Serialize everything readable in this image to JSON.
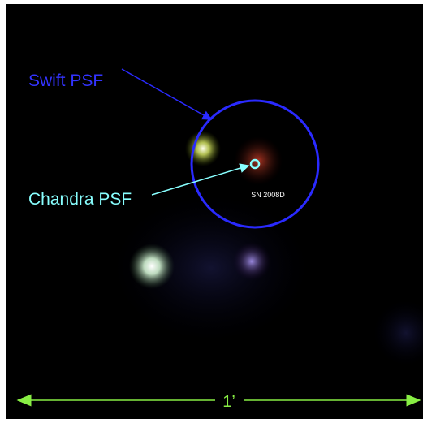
{
  "annotations": {
    "swift_label": "Swift PSF",
    "chandra_label": "Chandra PSF",
    "source_label": "SN 2008D",
    "scale_label": "1’"
  }
}
